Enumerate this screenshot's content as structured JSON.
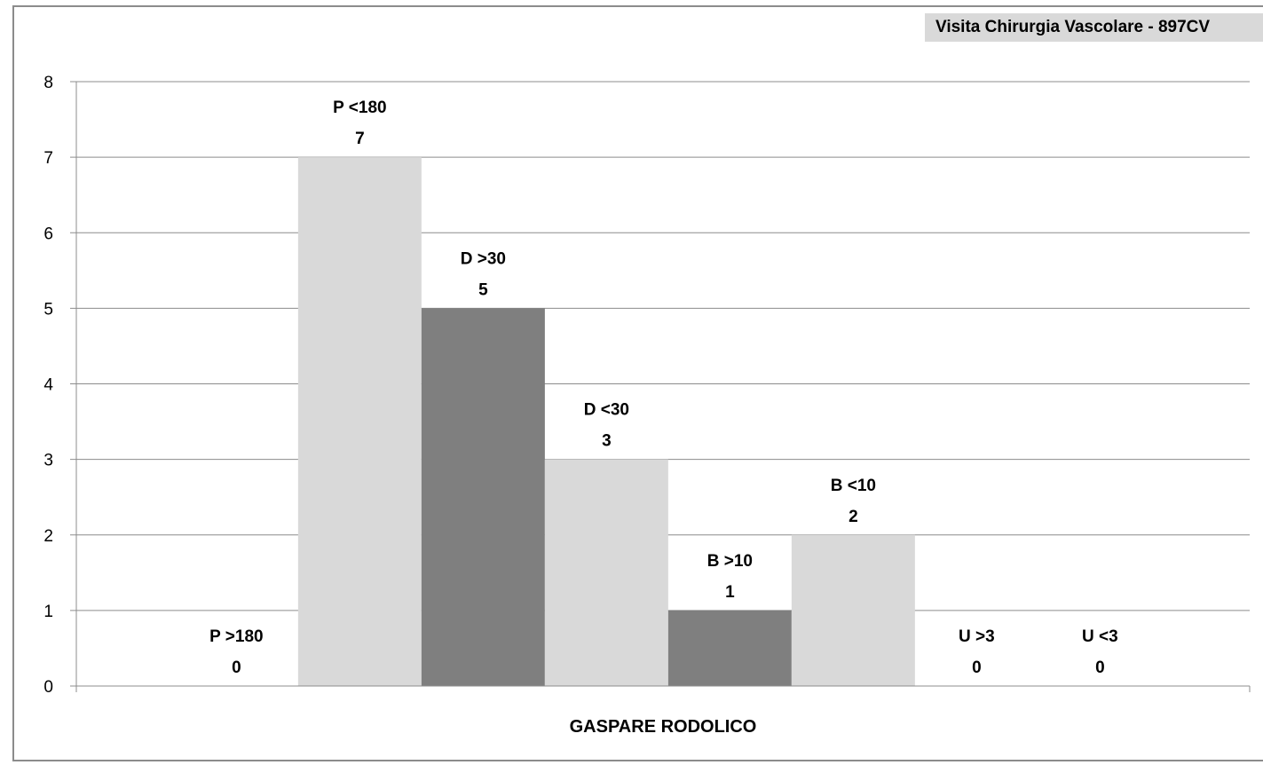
{
  "chart_data": {
    "type": "bar",
    "title": "Visita Chirurgia Vascolare - 897CV",
    "xlabel": "GASPARE RODOLICO",
    "ylabel": "",
    "ylim": [
      0,
      8
    ],
    "yticks": [
      0,
      1,
      2,
      3,
      4,
      5,
      6,
      7,
      8
    ],
    "grid": true,
    "legend": "none",
    "categories": [
      "P  >180",
      "P  <180",
      "D  >30",
      "D  <30",
      "B  >10",
      "B  <10",
      "U  >3",
      "U  <3"
    ],
    "values": [
      0,
      7,
      5,
      3,
      1,
      2,
      0,
      0
    ],
    "colors": [
      "#d9d9d9",
      "#d9d9d9",
      "#7f7f7f",
      "#d9d9d9",
      "#7f7f7f",
      "#d9d9d9",
      "#d9d9d9",
      "#d9d9d9"
    ]
  }
}
